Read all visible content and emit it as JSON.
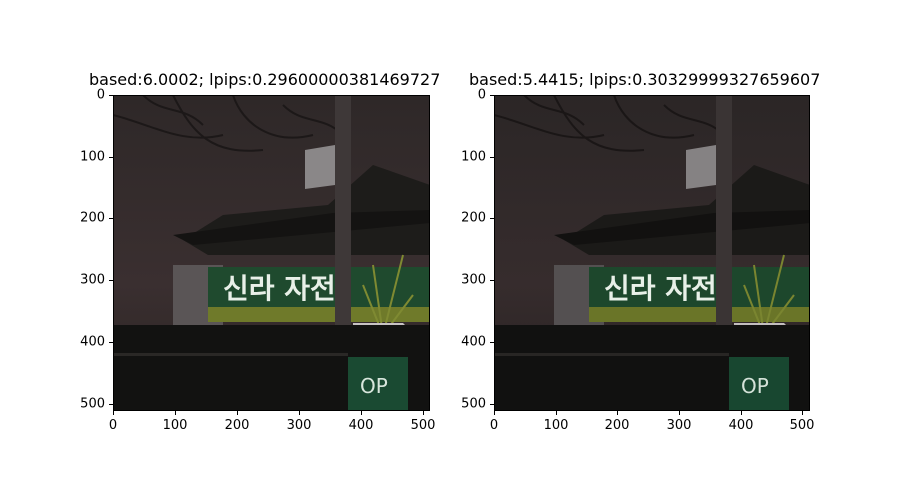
{
  "panels": [
    {
      "title": "based:6.0002; lpips:0.29600000381469727",
      "x_ticks": [
        "0",
        "100",
        "200",
        "300",
        "400",
        "500"
      ],
      "y_ticks": [
        "0",
        "100",
        "200",
        "300",
        "400",
        "500"
      ]
    },
    {
      "title": "based:5.4415; lpips:0.30329999327659607",
      "x_ticks": [
        "0",
        "100",
        "200",
        "300",
        "400",
        "500"
      ],
      "y_ticks": [
        "0",
        "100",
        "200",
        "300",
        "400",
        "500"
      ]
    }
  ],
  "sign_text": "신라 자전",
  "sign_small": "OP",
  "colors": {
    "sky": "#3a2f30",
    "banner": "#1f4a2e",
    "ground": "#121211"
  }
}
